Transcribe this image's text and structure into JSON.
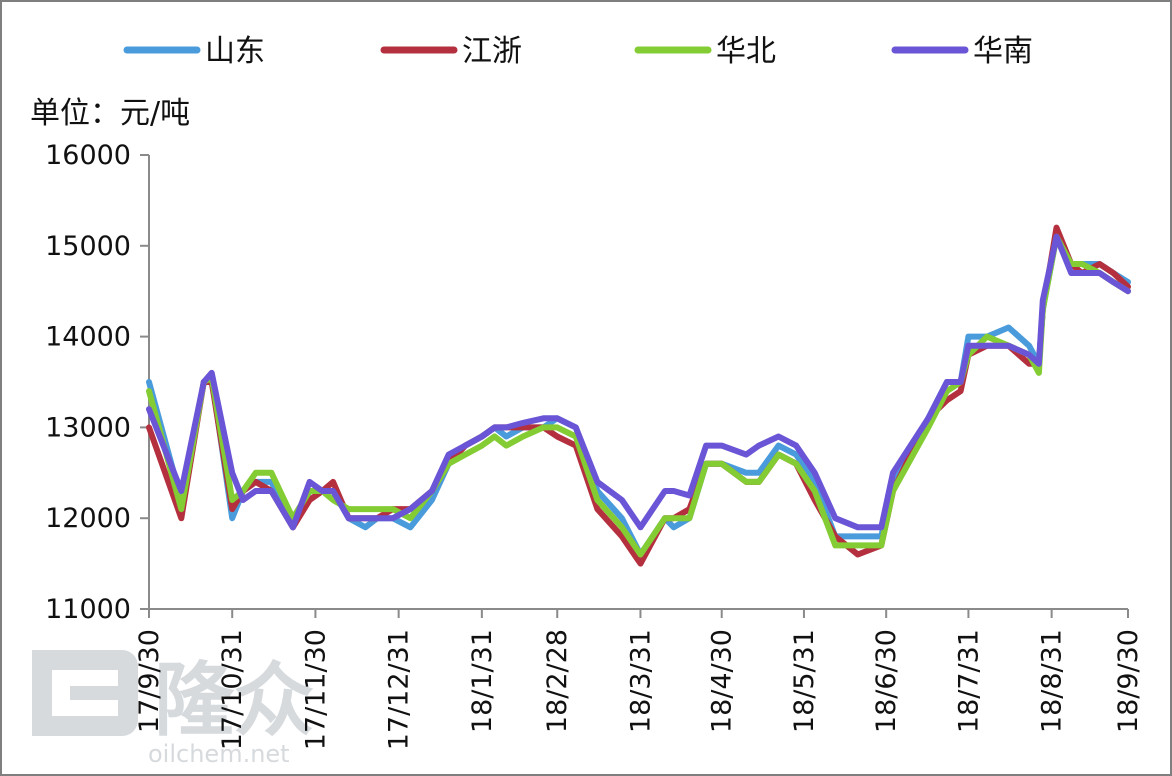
{
  "chart_data": {
    "type": "line",
    "unit_label": "单位：元/吨",
    "ylim": [
      11000,
      16000
    ],
    "yticks": [
      11000,
      12000,
      13000,
      14000,
      15000,
      16000
    ],
    "xlim": [
      0,
      100
    ],
    "xticks": [
      {
        "label": "17/9/30",
        "x": 0
      },
      {
        "label": "17/10/31",
        "x": 8.5
      },
      {
        "label": "17/11/30",
        "x": 17
      },
      {
        "label": "17/12/31",
        "x": 25.5
      },
      {
        "label": "18/1/31",
        "x": 34
      },
      {
        "label": "18/2/28",
        "x": 41.7
      },
      {
        "label": "18/3/31",
        "x": 50.2
      },
      {
        "label": "18/4/30",
        "x": 58.5
      },
      {
        "label": "18/5/31",
        "x": 66.9
      },
      {
        "label": "18/6/30",
        "x": 75.3
      },
      {
        "label": "18/7/31",
        "x": 83.7
      },
      {
        "label": "18/8/31",
        "x": 92.2
      },
      {
        "label": "18/9/30",
        "x": 100
      }
    ],
    "grid": false,
    "legend_position": "top",
    "series": [
      {
        "name": "山东",
        "color": "#4a9bdc",
        "points": [
          [
            0,
            13500
          ],
          [
            3.3,
            12200
          ],
          [
            5.6,
            13500
          ],
          [
            6.4,
            13550
          ],
          [
            8.5,
            12000
          ],
          [
            9.6,
            12300
          ],
          [
            10.9,
            12400
          ],
          [
            12.5,
            12400
          ],
          [
            14.7,
            11900
          ],
          [
            16.4,
            12300
          ],
          [
            17.7,
            12300
          ],
          [
            18.8,
            12300
          ],
          [
            20.4,
            12000
          ],
          [
            22.1,
            11900
          ],
          [
            23.3,
            12000
          ],
          [
            24.9,
            12000
          ],
          [
            26.7,
            11900
          ],
          [
            28.9,
            12200
          ],
          [
            30.6,
            12600
          ],
          [
            32.3,
            12800
          ],
          [
            34,
            12900
          ],
          [
            35.3,
            13000
          ],
          [
            36.5,
            12900
          ],
          [
            38.2,
            13000
          ],
          [
            40.3,
            13000
          ],
          [
            41.7,
            13100
          ],
          [
            43.6,
            13000
          ],
          [
            45.8,
            12300
          ],
          [
            48.3,
            12000
          ],
          [
            50.2,
            11600
          ],
          [
            52.7,
            12000
          ],
          [
            53.6,
            11900
          ],
          [
            55.2,
            12000
          ],
          [
            56.9,
            12600
          ],
          [
            58.5,
            12600
          ],
          [
            61,
            12500
          ],
          [
            62.3,
            12500
          ],
          [
            64.3,
            12800
          ],
          [
            66.1,
            12700
          ],
          [
            68,
            12400
          ],
          [
            70.1,
            11800
          ],
          [
            72.4,
            11800
          ],
          [
            74.8,
            11800
          ],
          [
            76,
            12400
          ],
          [
            79.6,
            13100
          ],
          [
            81.5,
            13500
          ],
          [
            82.9,
            13500
          ],
          [
            83.7,
            14000
          ],
          [
            85.6,
            14000
          ],
          [
            87.8,
            14100
          ],
          [
            89.9,
            13900
          ],
          [
            90.9,
            13700
          ],
          [
            91.3,
            14300
          ],
          [
            92.7,
            15100
          ],
          [
            94.2,
            14800
          ],
          [
            95.3,
            14800
          ],
          [
            97.1,
            14800
          ],
          [
            98.5,
            14700
          ],
          [
            100,
            14600
          ]
        ]
      },
      {
        "name": "江浙",
        "color": "#b5303f",
        "points": [
          [
            0,
            13000
          ],
          [
            3.3,
            12000
          ],
          [
            5.6,
            13500
          ],
          [
            6.4,
            13500
          ],
          [
            8.5,
            12100
          ],
          [
            9.6,
            12300
          ],
          [
            10.9,
            12400
          ],
          [
            12.5,
            12300
          ],
          [
            14.7,
            11900
          ],
          [
            16.4,
            12200
          ],
          [
            17.7,
            12300
          ],
          [
            18.8,
            12400
          ],
          [
            20.4,
            12000
          ],
          [
            22.1,
            12000
          ],
          [
            23.3,
            12000
          ],
          [
            24.9,
            12100
          ],
          [
            26.7,
            12100
          ],
          [
            28.9,
            12300
          ],
          [
            30.6,
            12600
          ],
          [
            32.3,
            12800
          ],
          [
            34,
            12900
          ],
          [
            35.3,
            13000
          ],
          [
            36.5,
            13000
          ],
          [
            38.2,
            13000
          ],
          [
            40.3,
            13000
          ],
          [
            41.7,
            12900
          ],
          [
            43.6,
            12800
          ],
          [
            45.8,
            12100
          ],
          [
            48.3,
            11800
          ],
          [
            50.2,
            11500
          ],
          [
            52.7,
            12000
          ],
          [
            53.6,
            12000
          ],
          [
            55.2,
            12100
          ],
          [
            56.9,
            12600
          ],
          [
            58.5,
            12600
          ],
          [
            61,
            12400
          ],
          [
            62.3,
            12400
          ],
          [
            64.3,
            12700
          ],
          [
            66.1,
            12600
          ],
          [
            68,
            12200
          ],
          [
            70.1,
            11800
          ],
          [
            72.4,
            11600
          ],
          [
            74.8,
            11700
          ],
          [
            76,
            12300
          ],
          [
            79.6,
            13100
          ],
          [
            81.5,
            13300
          ],
          [
            82.9,
            13400
          ],
          [
            83.7,
            13800
          ],
          [
            85.6,
            13900
          ],
          [
            87.8,
            13900
          ],
          [
            89.9,
            13700
          ],
          [
            90.9,
            13700
          ],
          [
            91.3,
            14300
          ],
          [
            92.7,
            15200
          ],
          [
            94.2,
            14800
          ],
          [
            95.3,
            14700
          ],
          [
            97.1,
            14800
          ],
          [
            98.5,
            14700
          ],
          [
            100,
            14550
          ]
        ]
      },
      {
        "name": "华北",
        "color": "#84cc33",
        "points": [
          [
            0,
            13400
          ],
          [
            3.3,
            12100
          ],
          [
            5.6,
            13500
          ],
          [
            6.4,
            13550
          ],
          [
            8.5,
            12200
          ],
          [
            9.6,
            12300
          ],
          [
            10.9,
            12500
          ],
          [
            12.5,
            12500
          ],
          [
            14.7,
            12000
          ],
          [
            16.4,
            12300
          ],
          [
            17.7,
            12300
          ],
          [
            18.8,
            12200
          ],
          [
            20.4,
            12100
          ],
          [
            22.1,
            12100
          ],
          [
            23.3,
            12100
          ],
          [
            24.9,
            12100
          ],
          [
            26.7,
            12000
          ],
          [
            28.9,
            12300
          ],
          [
            30.6,
            12600
          ],
          [
            32.3,
            12700
          ],
          [
            34,
            12800
          ],
          [
            35.3,
            12900
          ],
          [
            36.5,
            12800
          ],
          [
            38.2,
            12900
          ],
          [
            40.3,
            13000
          ],
          [
            41.7,
            13000
          ],
          [
            43.6,
            12900
          ],
          [
            45.8,
            12200
          ],
          [
            48.3,
            11900
          ],
          [
            50.2,
            11600
          ],
          [
            52.7,
            12000
          ],
          [
            53.6,
            12000
          ],
          [
            55.2,
            12000
          ],
          [
            56.9,
            12600
          ],
          [
            58.5,
            12600
          ],
          [
            61,
            12400
          ],
          [
            62.3,
            12400
          ],
          [
            64.3,
            12700
          ],
          [
            66.1,
            12600
          ],
          [
            68,
            12300
          ],
          [
            70.1,
            11700
          ],
          [
            72.4,
            11700
          ],
          [
            74.8,
            11700
          ],
          [
            76,
            12300
          ],
          [
            79.6,
            13000
          ],
          [
            81.5,
            13400
          ],
          [
            82.9,
            13500
          ],
          [
            83.7,
            13800
          ],
          [
            85.6,
            14000
          ],
          [
            87.8,
            13900
          ],
          [
            89.9,
            13800
          ],
          [
            90.9,
            13600
          ],
          [
            91.3,
            14300
          ],
          [
            92.7,
            15100
          ],
          [
            94.2,
            14800
          ],
          [
            95.3,
            14800
          ],
          [
            97.1,
            14700
          ],
          [
            98.5,
            14600
          ],
          [
            100,
            14500
          ]
        ]
      },
      {
        "name": "华南",
        "color": "#6a55d6",
        "points": [
          [
            0,
            13200
          ],
          [
            3.3,
            12300
          ],
          [
            5.6,
            13500
          ],
          [
            6.4,
            13600
          ],
          [
            8.5,
            12500
          ],
          [
            9.6,
            12200
          ],
          [
            10.9,
            12300
          ],
          [
            12.5,
            12300
          ],
          [
            14.7,
            11900
          ],
          [
            16.4,
            12400
          ],
          [
            17.7,
            12300
          ],
          [
            18.8,
            12300
          ],
          [
            20.4,
            12000
          ],
          [
            22.1,
            12000
          ],
          [
            23.3,
            12000
          ],
          [
            24.9,
            12000
          ],
          [
            26.7,
            12100
          ],
          [
            28.9,
            12300
          ],
          [
            30.6,
            12700
          ],
          [
            32.3,
            12800
          ],
          [
            34,
            12900
          ],
          [
            35.3,
            13000
          ],
          [
            36.5,
            13000
          ],
          [
            38.2,
            13050
          ],
          [
            40.3,
            13100
          ],
          [
            41.7,
            13100
          ],
          [
            43.6,
            13000
          ],
          [
            45.8,
            12400
          ],
          [
            48.3,
            12200
          ],
          [
            50.2,
            11900
          ],
          [
            52.7,
            12300
          ],
          [
            53.6,
            12300
          ],
          [
            55.2,
            12250
          ],
          [
            56.9,
            12800
          ],
          [
            58.5,
            12800
          ],
          [
            61,
            12700
          ],
          [
            62.3,
            12800
          ],
          [
            64.3,
            12900
          ],
          [
            66.1,
            12800
          ],
          [
            68,
            12500
          ],
          [
            70.1,
            12000
          ],
          [
            72.4,
            11900
          ],
          [
            74.8,
            11900
          ],
          [
            76,
            12500
          ],
          [
            79.6,
            13100
          ],
          [
            81.5,
            13500
          ],
          [
            82.9,
            13500
          ],
          [
            83.7,
            13900
          ],
          [
            85.6,
            13900
          ],
          [
            87.8,
            13900
          ],
          [
            89.9,
            13800
          ],
          [
            90.9,
            13700
          ],
          [
            91.3,
            14400
          ],
          [
            92.7,
            15100
          ],
          [
            94.2,
            14700
          ],
          [
            95.3,
            14700
          ],
          [
            97.1,
            14700
          ],
          [
            98.5,
            14600
          ],
          [
            100,
            14500
          ]
        ]
      }
    ]
  },
  "watermark": {
    "brand": "隆众",
    "domain": "oilchem.net"
  }
}
